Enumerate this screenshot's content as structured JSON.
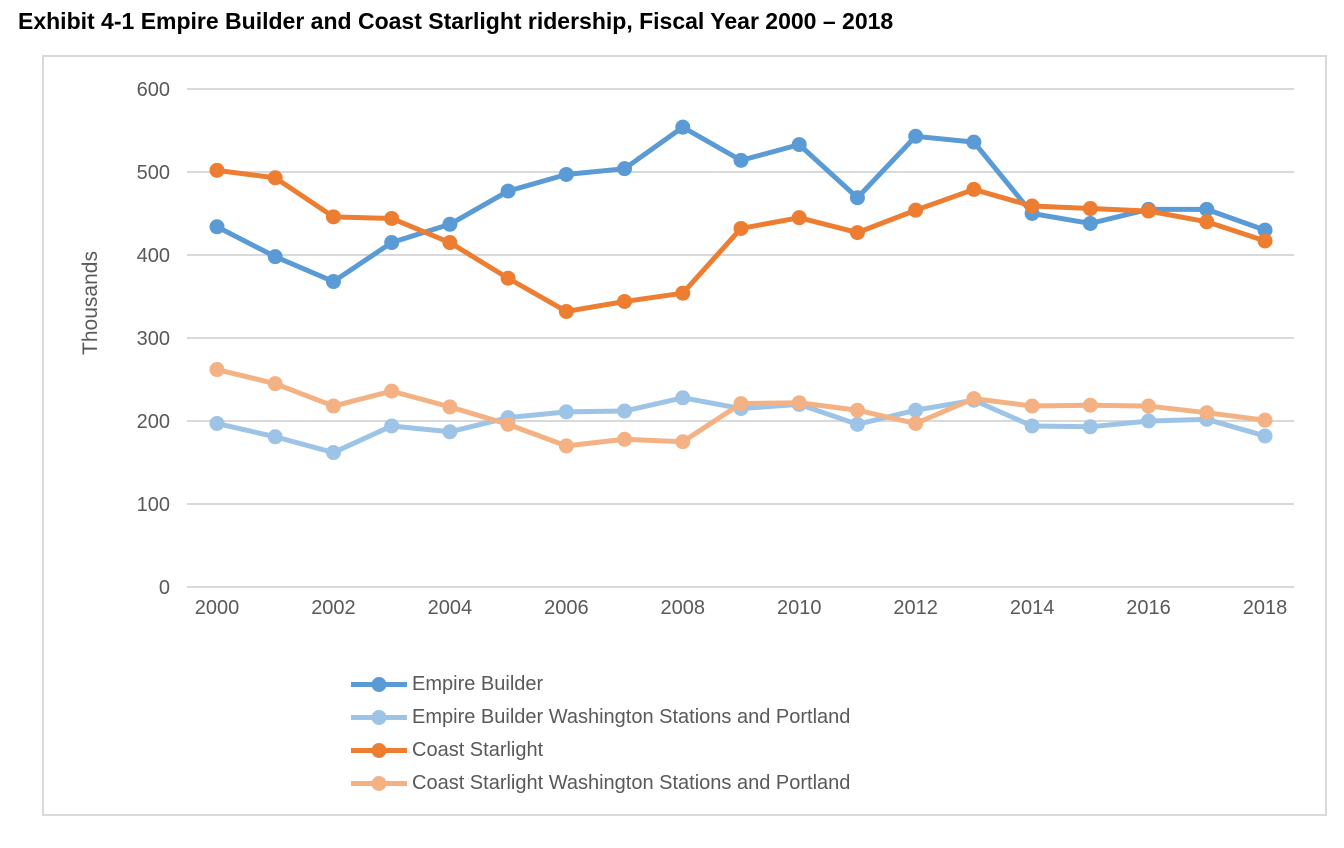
{
  "page": {
    "title": "Exhibit 4-1 Empire Builder and Coast Starlight ridership, Fiscal Year 2000 – 2018"
  },
  "chart_data": {
    "type": "line",
    "title": "",
    "xlabel": "",
    "ylabel": "Thousands",
    "ylim": [
      0,
      600
    ],
    "y_ticks": [
      0,
      100,
      200,
      300,
      400,
      500,
      600
    ],
    "x": [
      2000,
      2001,
      2002,
      2003,
      2004,
      2005,
      2006,
      2007,
      2008,
      2009,
      2010,
      2011,
      2012,
      2013,
      2014,
      2015,
      2016,
      2017,
      2018
    ],
    "x_tick_labels": [
      "2000",
      "2002",
      "2004",
      "2006",
      "2008",
      "2010",
      "2012",
      "2014",
      "2016",
      "2018"
    ],
    "grid": "horizontal",
    "gridline_color": "#d9d9d9",
    "axis_text_color": "#595959",
    "legend_position": "bottom-left",
    "series": [
      {
        "name": "Empire Builder",
        "color": "#5B9BD5",
        "values": [
          434,
          398,
          368,
          415,
          437,
          477,
          497,
          504,
          554,
          514,
          533,
          469,
          543,
          536,
          450,
          438,
          455,
          455,
          430
        ]
      },
      {
        "name": "Empire Builder Washington Stations and Portland",
        "color": "#9DC3E6",
        "values": [
          197,
          181,
          162,
          194,
          187,
          204,
          211,
          212,
          228,
          215,
          220,
          196,
          213,
          225,
          194,
          193,
          200,
          202,
          182
        ]
      },
      {
        "name": "Coast Starlight",
        "color": "#ED7D31",
        "values": [
          502,
          493,
          446,
          444,
          415,
          372,
          332,
          344,
          354,
          432,
          445,
          427,
          454,
          479,
          459,
          456,
          453,
          440,
          417
        ]
      },
      {
        "name": "Coast Starlight Washington Stations and Portland",
        "color": "#F4B183",
        "values": [
          262,
          245,
          218,
          236,
          217,
          196,
          170,
          178,
          175,
          221,
          222,
          213,
          197,
          227,
          218,
          219,
          218,
          210,
          201
        ]
      }
    ]
  }
}
